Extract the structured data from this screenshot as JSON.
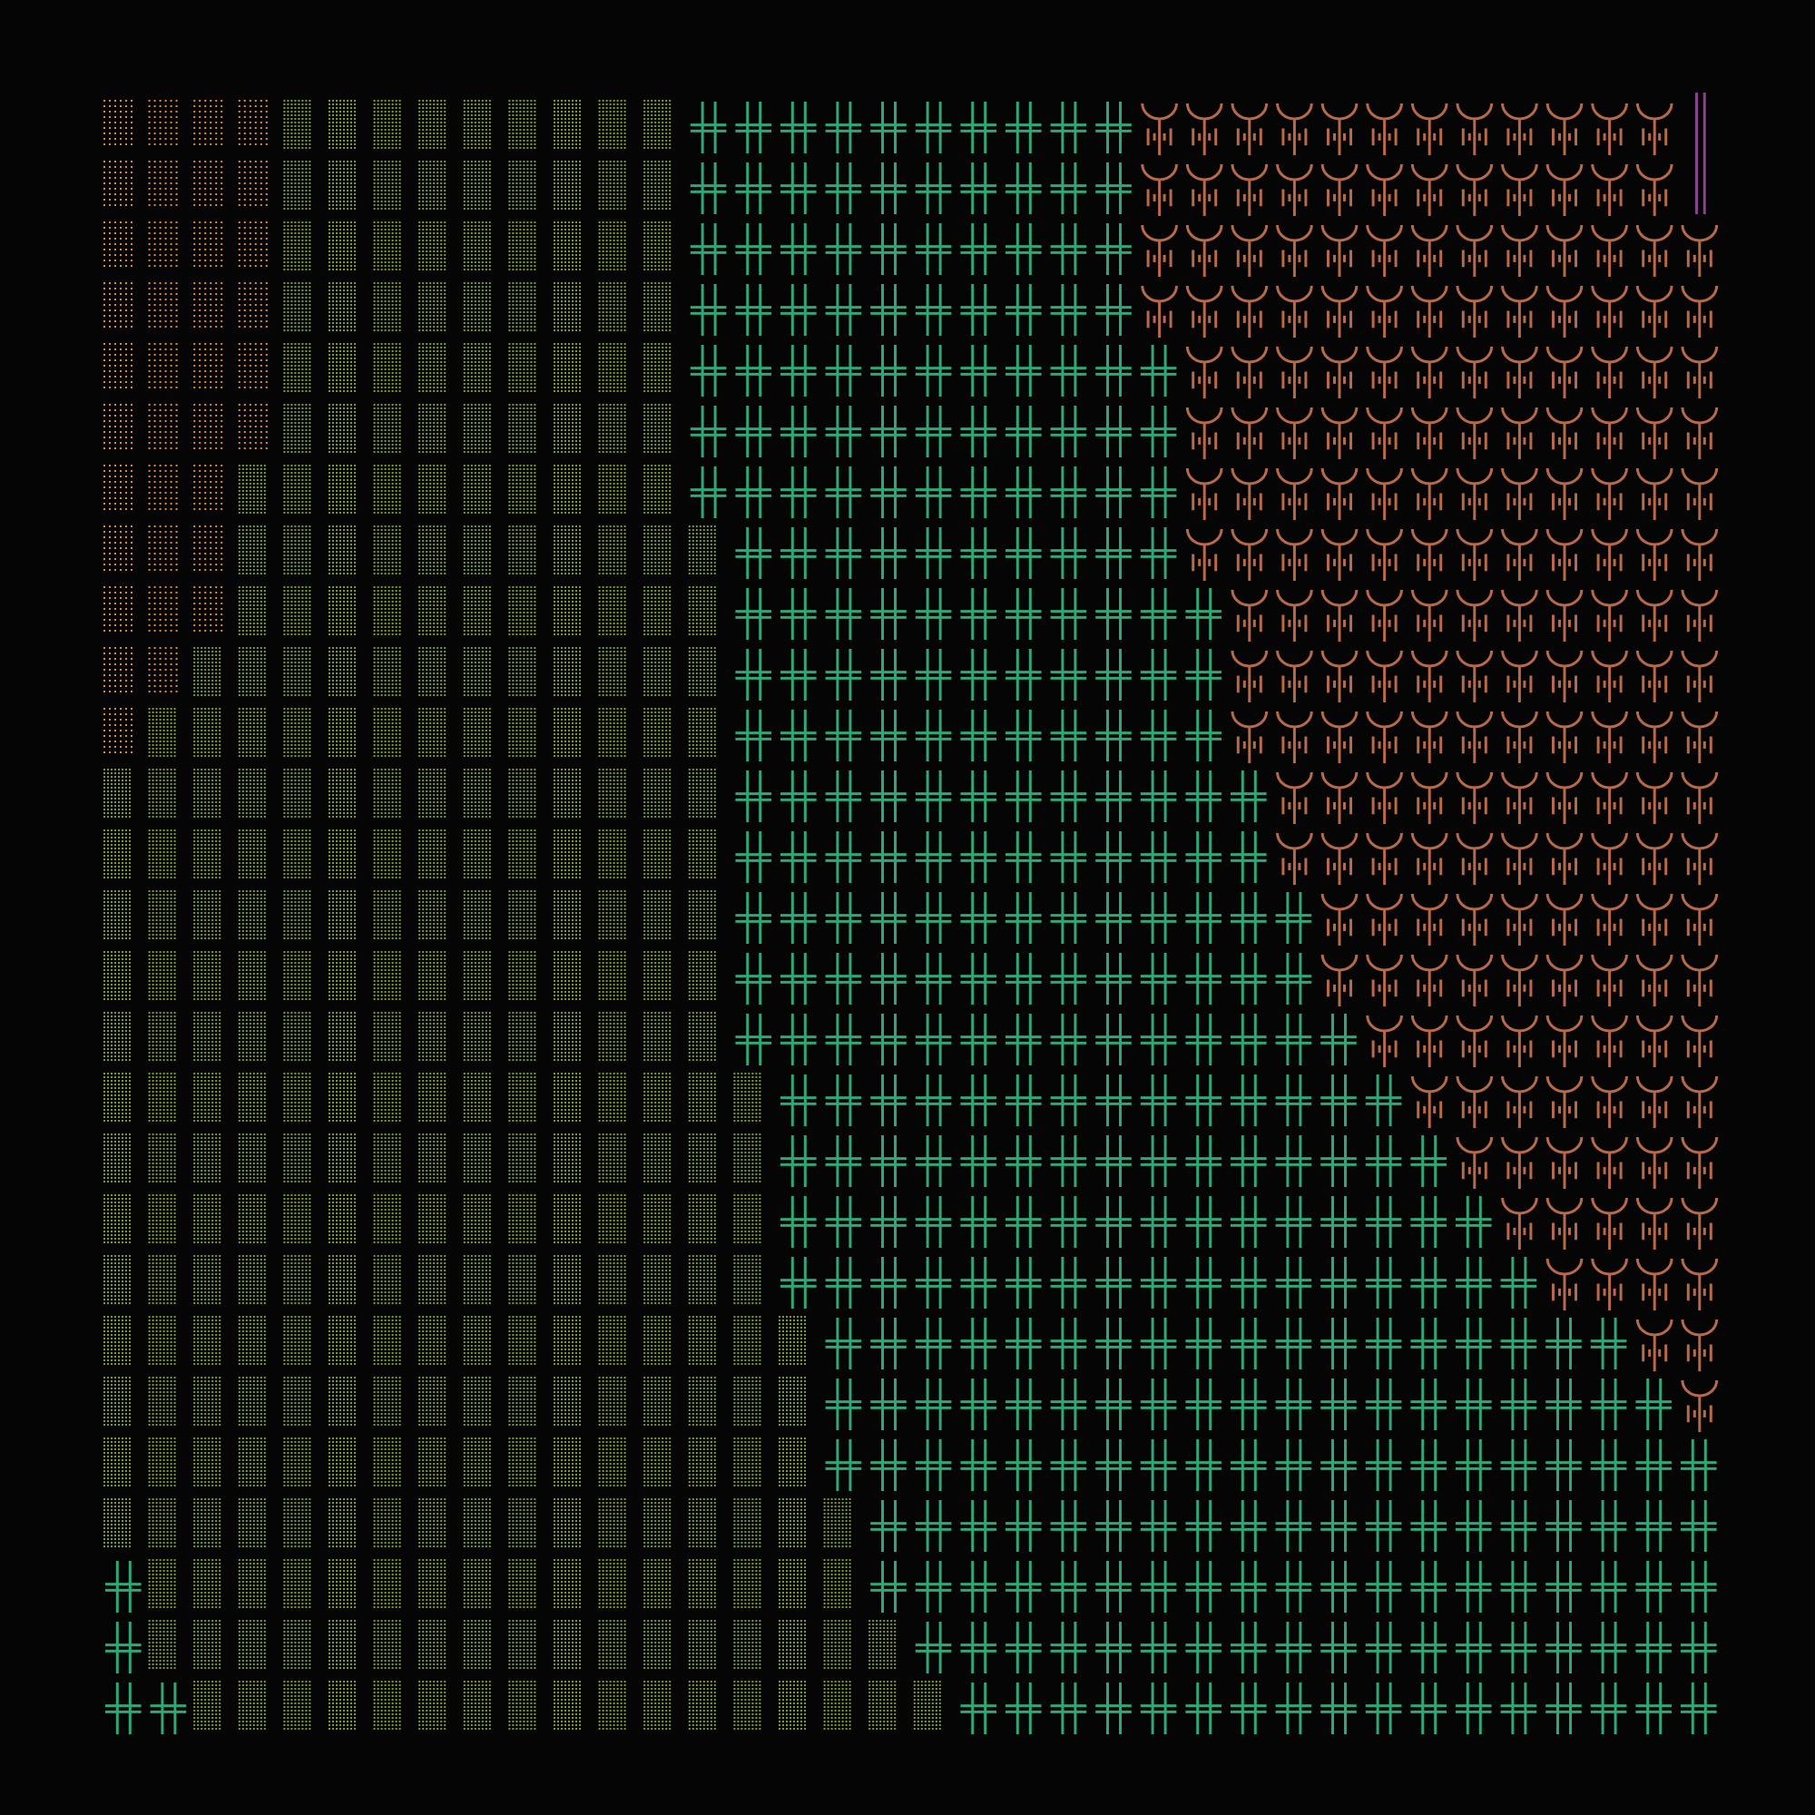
{
  "artwork": {
    "background": "#050505",
    "grid": {
      "columns": 36,
      "rows": 27
    },
    "zones": [
      {
        "name": "orange-dots",
        "glyph": "dot-grid",
        "color": "#d98a3a"
      },
      {
        "name": "olive-dots",
        "glyph": "dense-dot-grid",
        "color": "#7a9a35"
      },
      {
        "name": "green-crosses",
        "glyph": "double-cross",
        "color": "#2fa878"
      },
      {
        "name": "copper-forks",
        "glyph": "trident",
        "color": "#b86a48"
      },
      {
        "name": "purple-bars",
        "glyph": "vertical-bars",
        "color": "#8a3f8f"
      }
    ],
    "boundaries": {
      "orange_until_col_by_row": [
        4,
        4,
        4,
        4,
        4,
        4,
        3,
        3,
        3,
        2,
        1,
        0,
        0,
        0,
        0,
        0,
        0,
        0,
        0,
        0,
        0,
        0,
        0,
        0,
        0,
        0,
        0
      ],
      "olive_until_col_by_row": [
        13,
        13,
        13,
        13,
        13,
        13,
        13,
        14,
        14,
        14,
        14,
        14,
        14,
        14,
        14,
        14,
        15,
        15,
        15,
        15,
        16,
        16,
        16,
        17,
        17,
        18,
        19
      ],
      "green_until_col_by_row": [
        23,
        23,
        23,
        23,
        24,
        24,
        24,
        24,
        25,
        25,
        25,
        26,
        26,
        27,
        27,
        28,
        29,
        30,
        31,
        32,
        34,
        35,
        36,
        36,
        36,
        36,
        36
      ],
      "green_start_col_override": {
        "24": 0,
        "25": 0,
        "26": 0
      },
      "olive_start_col_override": {
        "24": 1,
        "25": 1,
        "26": 2
      },
      "purple_rows": [
        0,
        1,
        2,
        3,
        4
      ],
      "purple_from_col_by_row": [
        35,
        35,
        36,
        36,
        36
      ]
    }
  }
}
